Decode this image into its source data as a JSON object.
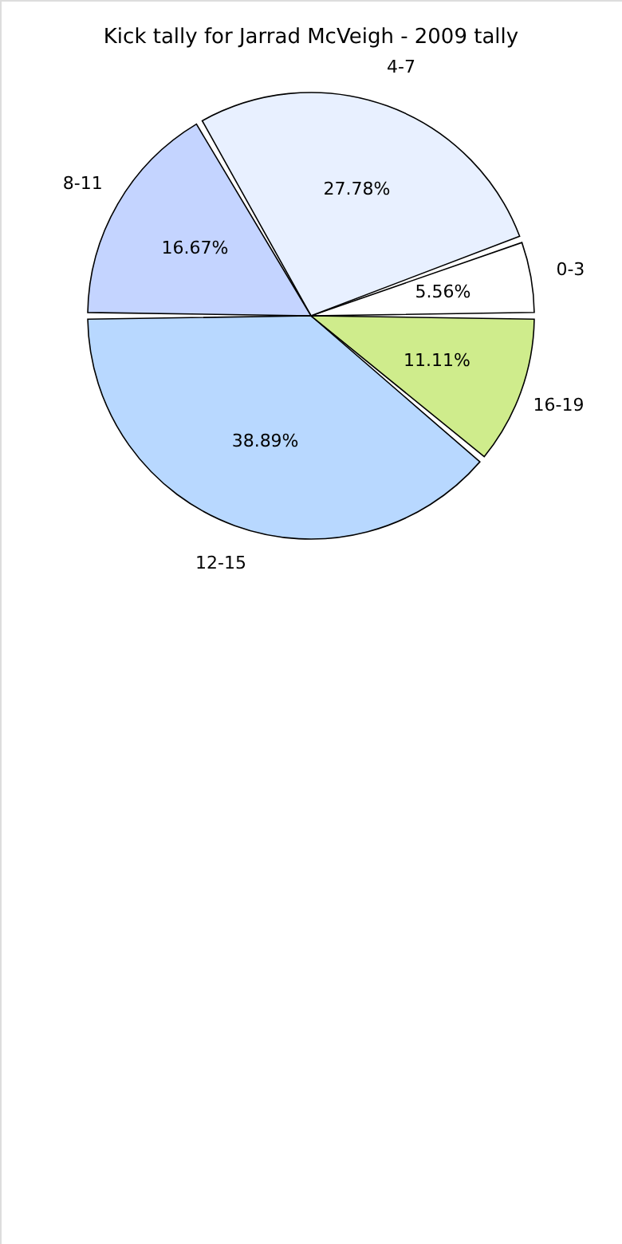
{
  "chart_data": {
    "type": "pie",
    "title": "Kick tally for Jarrad McVeigh - 2009 tally",
    "categories": [
      "0-3",
      "4-7",
      "8-11",
      "12-15",
      "16-19"
    ],
    "values": [
      5.56,
      27.78,
      16.67,
      38.89,
      11.11
    ],
    "value_labels": [
      "5.56%",
      "27.78%",
      "16.67%",
      "38.89%",
      "11.11%"
    ],
    "colors": [
      "#ffffff",
      "#e8f0ff",
      "#c4d4ff",
      "#b8d8ff",
      "#cfec8c"
    ]
  }
}
